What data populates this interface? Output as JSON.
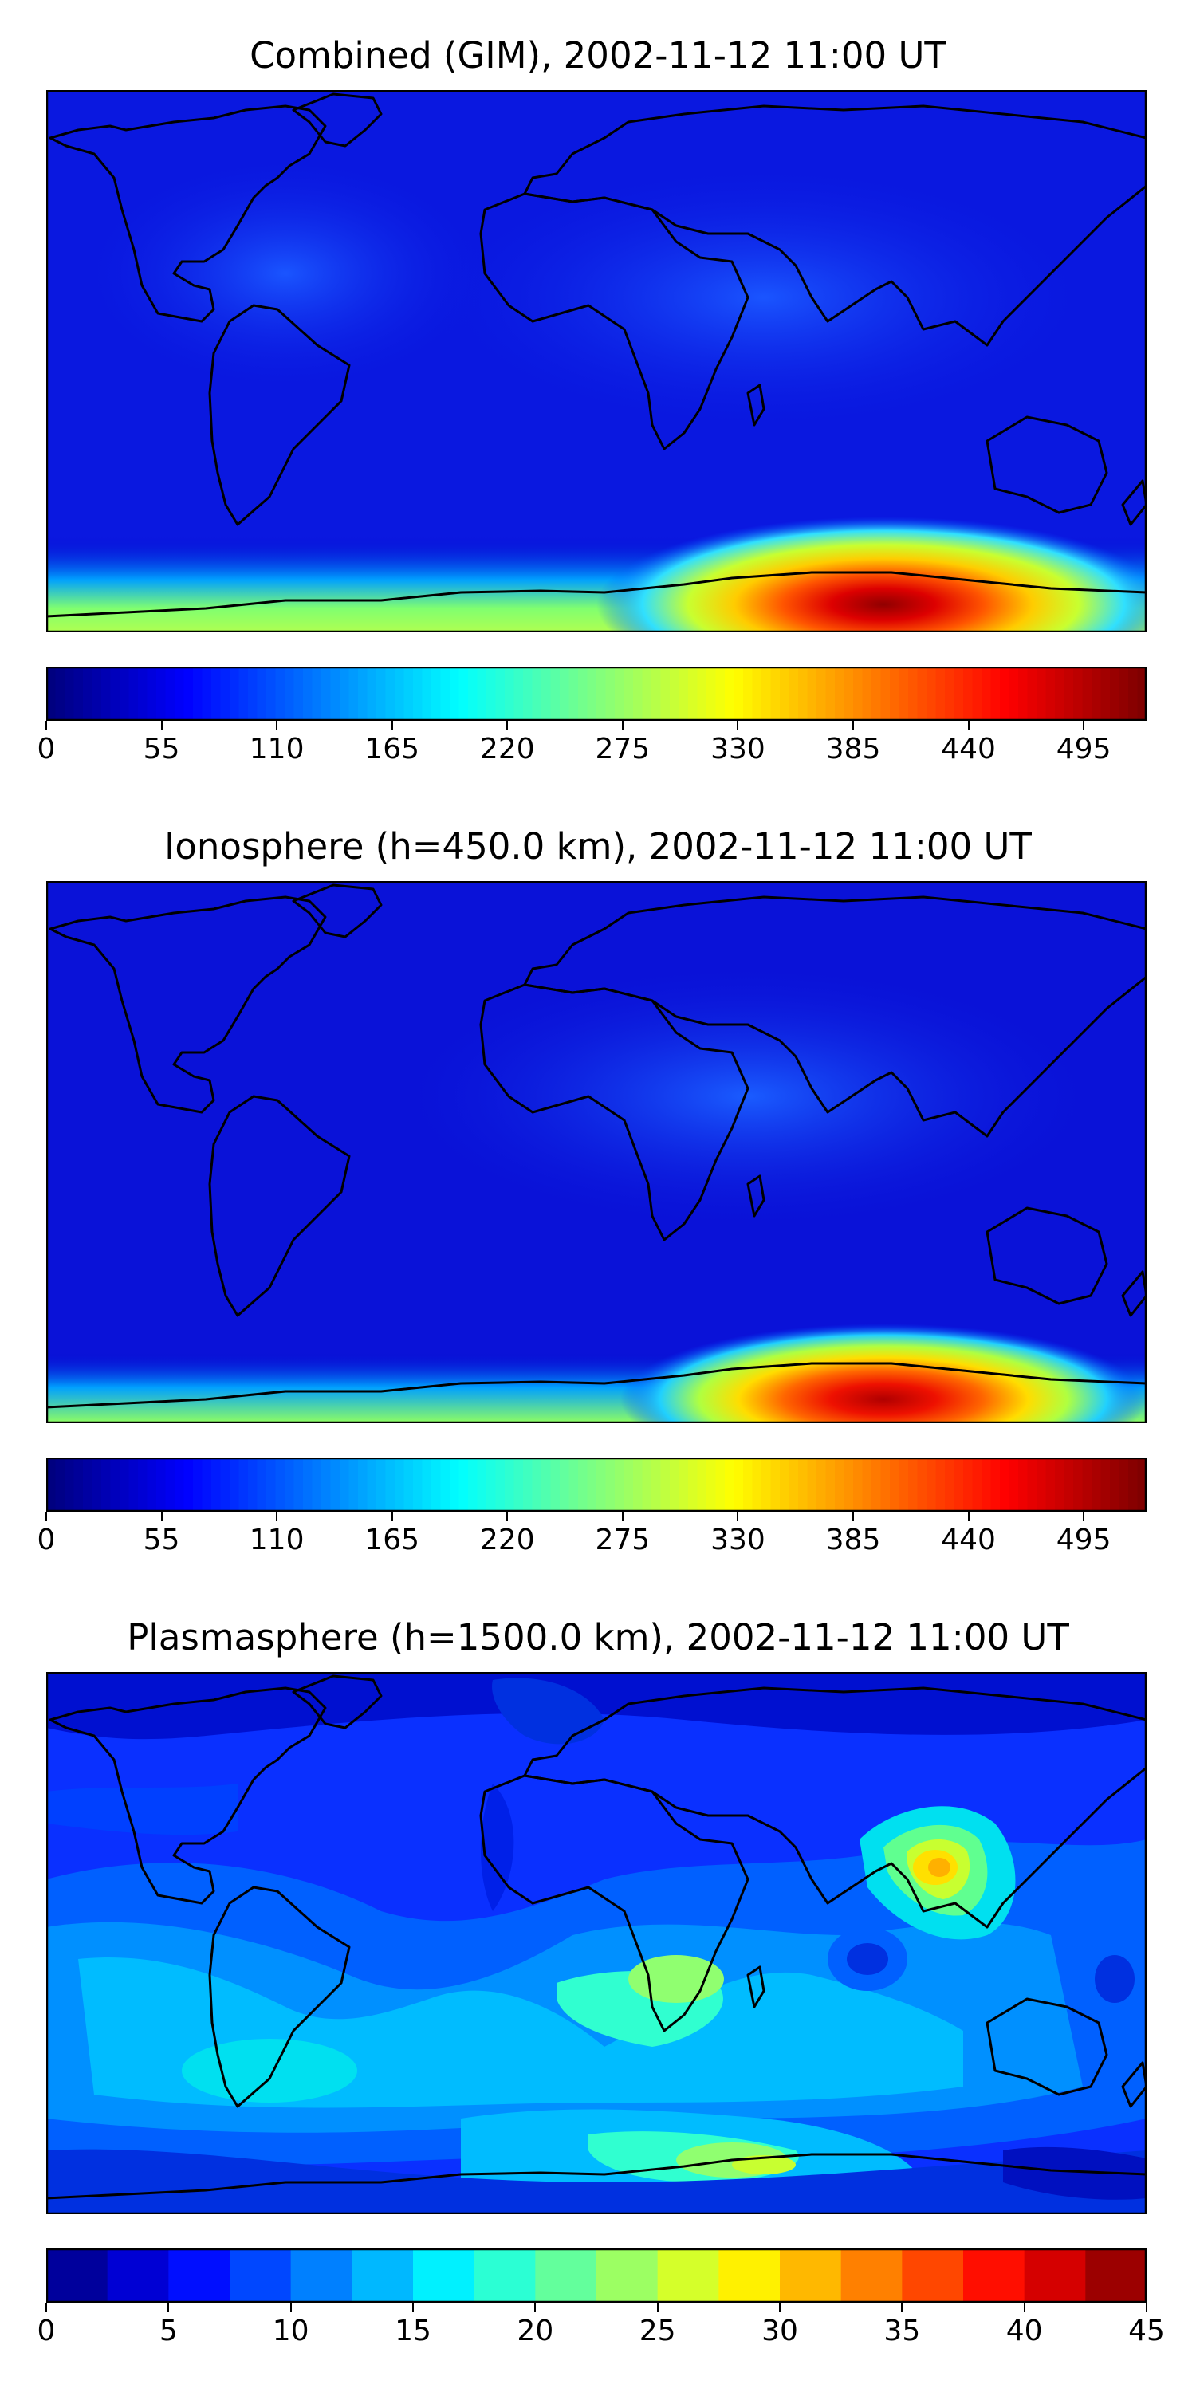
{
  "panels": [
    {
      "title": "Combined (GIM), 2002-11-12 11:00 UT",
      "colorbar": {
        "min": 0,
        "max": 525,
        "ticks": [
          0,
          55,
          110,
          165,
          220,
          275,
          330,
          385,
          440,
          495
        ],
        "discrete": false
      }
    },
    {
      "title": "Ionosphere  (h=450.0 km), 2002-11-12 11:00 UT",
      "colorbar": {
        "min": 0,
        "max": 525,
        "ticks": [
          0,
          55,
          110,
          165,
          220,
          275,
          330,
          385,
          440,
          495
        ],
        "discrete": false
      }
    },
    {
      "title": "Plasmasphere (h=1500.0 km), 2002-11-12 11:00 UT",
      "colorbar": {
        "min": 0,
        "max": 45,
        "ticks": [
          0,
          5,
          10,
          15,
          20,
          25,
          30,
          35,
          40,
          45
        ],
        "discrete": true,
        "levels": 18
      }
    }
  ],
  "colormap": "jet",
  "map": {
    "projection": "plate carree",
    "coastlines": true
  }
}
